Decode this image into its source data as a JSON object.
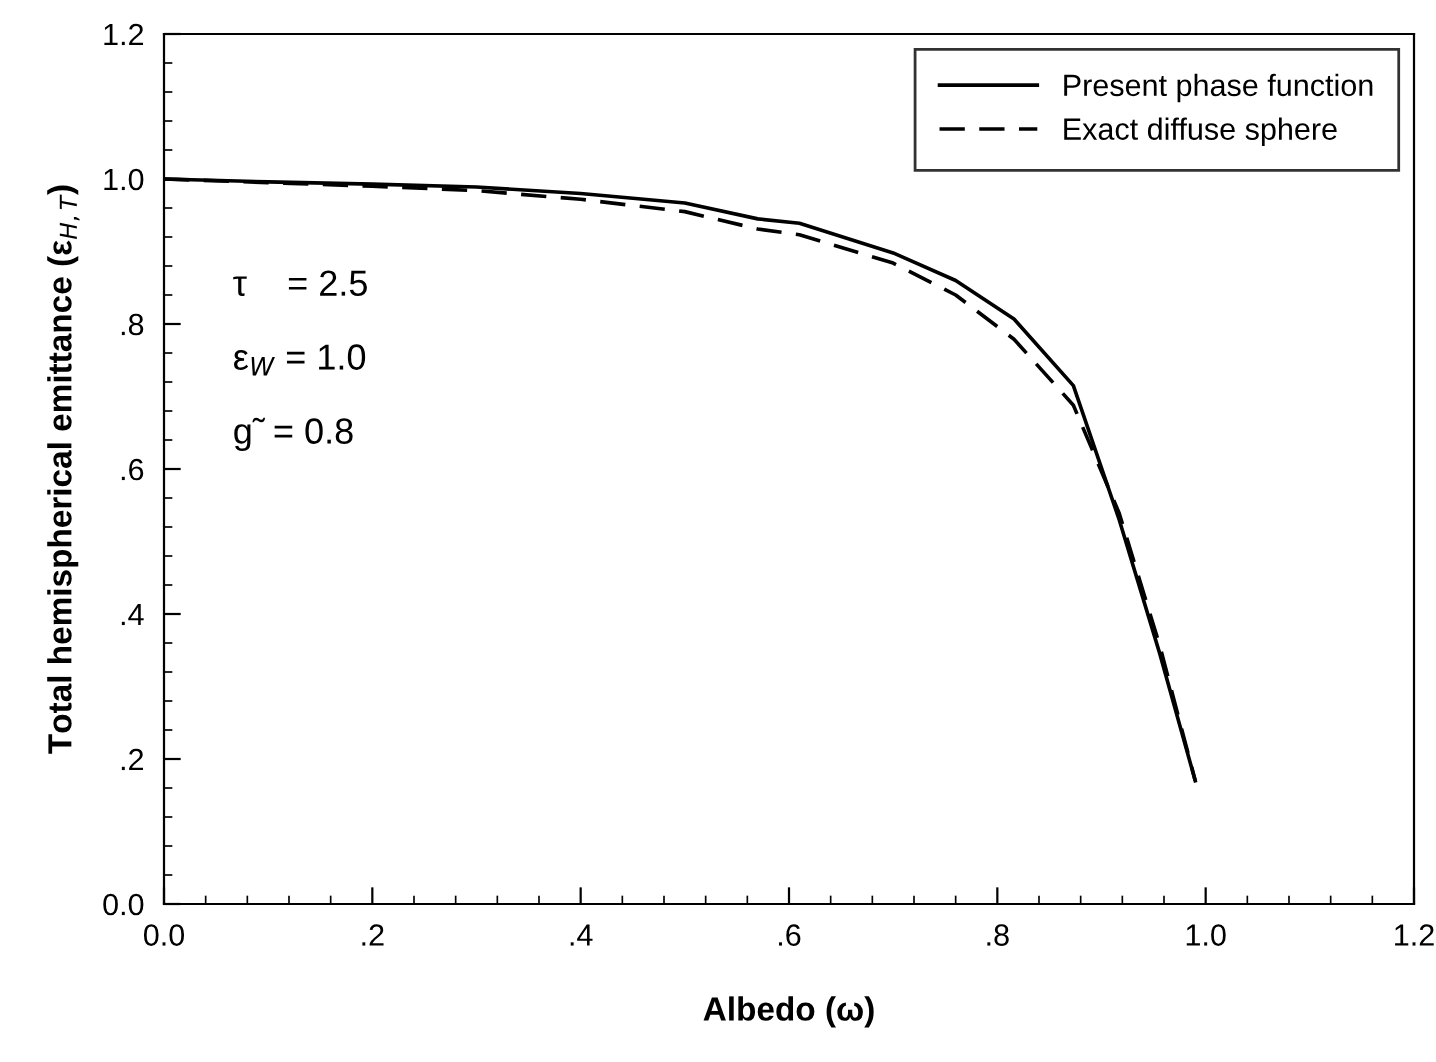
{
  "chart_data": {
    "type": "line",
    "xlabel": "Albedo (ω)",
    "ylabel": "Total hemispherical emittance (ε$_{H,T}$)",
    "series": [
      {
        "name": "Present phase function",
        "color": "#000000",
        "line_style": "solid",
        "x": [
          0.0,
          0.1,
          0.2,
          0.3,
          0.4,
          0.5,
          0.57,
          0.61,
          0.7,
          0.76,
          0.816,
          0.873,
          0.917,
          0.956,
          0.99
        ],
        "values": [
          1.0,
          0.996,
          0.993,
          0.989,
          0.98,
          0.967,
          0.945,
          0.939,
          0.898,
          0.86,
          0.807,
          0.715,
          0.53,
          0.345,
          0.17
        ]
      },
      {
        "name": "Exact diffuse sphere",
        "color": "#000000",
        "line_style": "dashed",
        "x": [
          0.0,
          0.1,
          0.2,
          0.3,
          0.4,
          0.5,
          0.57,
          0.61,
          0.7,
          0.76,
          0.816,
          0.873,
          0.917,
          0.956,
          0.99
        ],
        "values": [
          1.0,
          0.995,
          0.99,
          0.984,
          0.972,
          0.955,
          0.931,
          0.923,
          0.884,
          0.84,
          0.779,
          0.688,
          0.539,
          0.356,
          0.17
        ]
      }
    ],
    "xlim": [
      0.0,
      1.2
    ],
    "ylim": [
      0.0,
      1.2
    ],
    "xticks": [
      {
        "value": 0.0,
        "label": "0.0"
      },
      {
        "value": 0.2,
        "label": ".2"
      },
      {
        "value": 0.4,
        "label": ".4"
      },
      {
        "value": 0.6,
        "label": ".6"
      },
      {
        "value": 0.8,
        "label": ".8"
      },
      {
        "value": 1.0,
        "label": "1.0"
      },
      {
        "value": 1.2,
        "label": "1.2"
      }
    ],
    "yticks": [
      {
        "value": 0.0,
        "label": "0.0"
      },
      {
        "value": 0.2,
        "label": ".2"
      },
      {
        "value": 0.4,
        "label": ".4"
      },
      {
        "value": 0.6,
        "label": ".6"
      },
      {
        "value": 0.8,
        "label": ".8"
      },
      {
        "value": 1.0,
        "label": "1.0"
      },
      {
        "value": 1.2,
        "label": "1.2"
      }
    ],
    "annotations": [
      "τ    = 2.5",
      "ε$_{W}$ = 1.0",
      "g̃  = 0.8"
    ],
    "grid": false,
    "legend": "top right",
    "marker": "none"
  }
}
